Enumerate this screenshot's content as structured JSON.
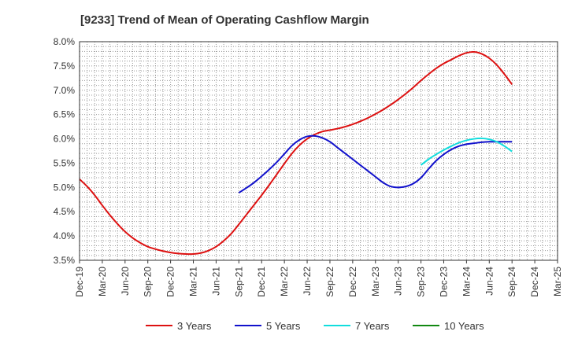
{
  "chart_data": {
    "type": "line",
    "title": "[9233]  Trend of Mean of Operating Cashflow Margin",
    "xlabel": "",
    "ylabel": "",
    "ylim": [
      3.5,
      8.0
    ],
    "y_ticks": [
      "3.5%",
      "4.0%",
      "4.5%",
      "5.0%",
      "5.5%",
      "6.0%",
      "6.5%",
      "7.0%",
      "7.5%",
      "8.0%"
    ],
    "x_ticks": [
      "Dec-19",
      "Mar-20",
      "Jun-20",
      "Sep-20",
      "Dec-20",
      "Mar-21",
      "Jun-21",
      "Sep-21",
      "Dec-21",
      "Mar-22",
      "Jun-22",
      "Sep-22",
      "Dec-22",
      "Mar-23",
      "Jun-23",
      "Sep-23",
      "Dec-23",
      "Mar-24",
      "Jun-24",
      "Sep-24",
      "Dec-24",
      "Mar-25"
    ],
    "grid": true,
    "legend_position": "bottom",
    "series": [
      {
        "name": "3 Years",
        "color": "#dd1111",
        "values": [
          [
            "Dec-19",
            5.17
          ],
          [
            "Jan-20",
            5.02
          ],
          [
            "Feb-20",
            4.84
          ],
          [
            "Mar-20",
            4.63
          ],
          [
            "Apr-20",
            4.43
          ],
          [
            "May-20",
            4.25
          ],
          [
            "Jun-20",
            4.09
          ],
          [
            "Jul-20",
            3.96
          ],
          [
            "Aug-20",
            3.86
          ],
          [
            "Sep-20",
            3.78
          ],
          [
            "Oct-20",
            3.73
          ],
          [
            "Nov-20",
            3.69
          ],
          [
            "Dec-20",
            3.66
          ],
          [
            "Jan-21",
            3.64
          ],
          [
            "Feb-21",
            3.63
          ],
          [
            "Mar-21",
            3.63
          ],
          [
            "Apr-21",
            3.65
          ],
          [
            "May-21",
            3.7
          ],
          [
            "Jun-21",
            3.78
          ],
          [
            "Jul-21",
            3.9
          ],
          [
            "Aug-21",
            4.05
          ],
          [
            "Sep-21",
            4.24
          ],
          [
            "Oct-21",
            4.44
          ],
          [
            "Nov-21",
            4.64
          ],
          [
            "Dec-21",
            4.84
          ],
          [
            "Jan-22",
            5.05
          ],
          [
            "Feb-22",
            5.27
          ],
          [
            "Mar-22",
            5.49
          ],
          [
            "Apr-22",
            5.7
          ],
          [
            "May-22",
            5.87
          ],
          [
            "Jun-22",
            6.0
          ],
          [
            "Jul-22",
            6.09
          ],
          [
            "Aug-22",
            6.15
          ],
          [
            "Sep-22",
            6.18
          ],
          [
            "Oct-22",
            6.21
          ],
          [
            "Nov-22",
            6.25
          ],
          [
            "Dec-22",
            6.3
          ],
          [
            "Jan-23",
            6.36
          ],
          [
            "Feb-23",
            6.43
          ],
          [
            "Mar-23",
            6.51
          ],
          [
            "Apr-23",
            6.6
          ],
          [
            "May-23",
            6.7
          ],
          [
            "Jun-23",
            6.81
          ],
          [
            "Jul-23",
            6.93
          ],
          [
            "Aug-23",
            7.06
          ],
          [
            "Sep-23",
            7.2
          ],
          [
            "Oct-23",
            7.33
          ],
          [
            "Nov-23",
            7.45
          ],
          [
            "Dec-23",
            7.55
          ],
          [
            "Jan-24",
            7.63
          ],
          [
            "Feb-24",
            7.71
          ],
          [
            "Mar-24",
            7.77
          ],
          [
            "Apr-24",
            7.79
          ],
          [
            "May-24",
            7.75
          ],
          [
            "Jun-24",
            7.66
          ],
          [
            "Jul-24",
            7.52
          ],
          [
            "Aug-24",
            7.33
          ],
          [
            "Sep-24",
            7.12
          ]
        ]
      },
      {
        "name": "5 Years",
        "color": "#1111cc",
        "values": [
          [
            "Sep-21",
            4.89
          ],
          [
            "Oct-21",
            4.99
          ],
          [
            "Nov-21",
            5.1
          ],
          [
            "Dec-21",
            5.23
          ],
          [
            "Jan-22",
            5.37
          ],
          [
            "Feb-22",
            5.52
          ],
          [
            "Mar-22",
            5.69
          ],
          [
            "Apr-22",
            5.86
          ],
          [
            "May-22",
            5.98
          ],
          [
            "Jun-22",
            6.05
          ],
          [
            "Jul-22",
            6.06
          ],
          [
            "Aug-22",
            6.02
          ],
          [
            "Sep-22",
            5.94
          ],
          [
            "Oct-22",
            5.82
          ],
          [
            "Nov-22",
            5.7
          ],
          [
            "Dec-22",
            5.58
          ],
          [
            "Jan-23",
            5.46
          ],
          [
            "Feb-23",
            5.34
          ],
          [
            "Mar-23",
            5.22
          ],
          [
            "Apr-23",
            5.1
          ],
          [
            "May-23",
            5.02
          ],
          [
            "Jun-23",
            5.0
          ],
          [
            "Jul-23",
            5.02
          ],
          [
            "Aug-23",
            5.08
          ],
          [
            "Sep-23",
            5.2
          ],
          [
            "Oct-23",
            5.38
          ],
          [
            "Nov-23",
            5.55
          ],
          [
            "Dec-23",
            5.68
          ],
          [
            "Jan-24",
            5.78
          ],
          [
            "Feb-24",
            5.85
          ],
          [
            "Mar-24",
            5.89
          ],
          [
            "Apr-24",
            5.91
          ],
          [
            "May-24",
            5.93
          ],
          [
            "Jun-24",
            5.94
          ],
          [
            "Jul-24",
            5.94
          ],
          [
            "Aug-24",
            5.94
          ],
          [
            "Sep-24",
            5.94
          ]
        ]
      },
      {
        "name": "7 Years",
        "color": "#11dddd",
        "values": [
          [
            "Sep-23",
            5.46
          ],
          [
            "Oct-23",
            5.58
          ],
          [
            "Nov-23",
            5.68
          ],
          [
            "Dec-23",
            5.77
          ],
          [
            "Jan-24",
            5.85
          ],
          [
            "Feb-24",
            5.92
          ],
          [
            "Mar-24",
            5.97
          ],
          [
            "Apr-24",
            6.0
          ],
          [
            "May-24",
            6.01
          ],
          [
            "Jun-24",
            5.99
          ],
          [
            "Jul-24",
            5.94
          ],
          [
            "Aug-24",
            5.85
          ],
          [
            "Sep-24",
            5.74
          ]
        ]
      },
      {
        "name": "10 Years",
        "color": "#118811",
        "values": []
      }
    ]
  }
}
